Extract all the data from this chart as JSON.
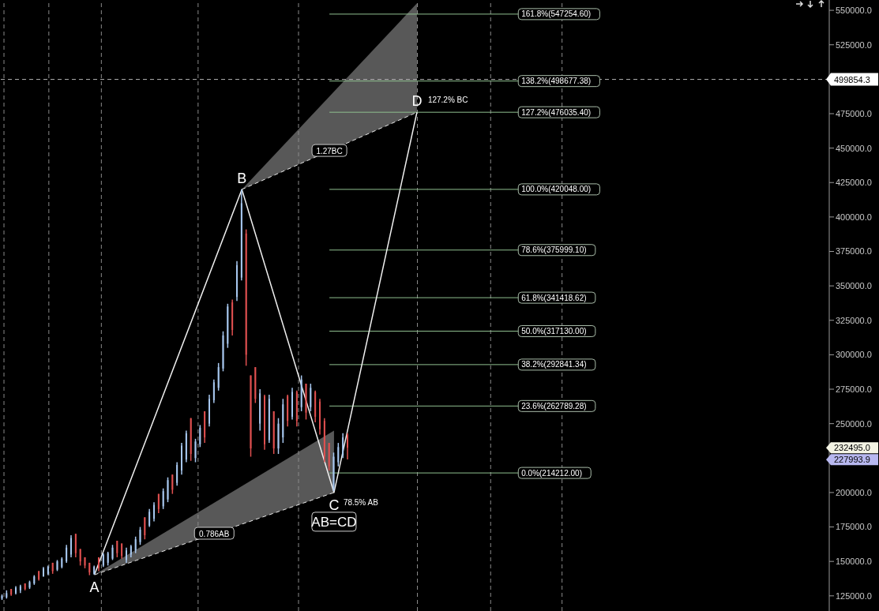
{
  "chart_data": {
    "type": "candlestick",
    "categories": [
      null,
      null,
      null,
      null,
      null,
      null,
      null,
      null,
      null,
      null,
      null,
      null,
      null,
      null,
      null,
      null,
      null,
      null,
      null,
      null,
      null,
      null,
      null,
      null,
      null,
      null,
      null,
      null,
      null,
      null,
      null,
      null,
      null,
      null,
      null,
      null,
      null,
      null,
      null,
      null,
      null,
      null,
      null,
      null,
      null,
      null,
      null,
      null,
      null,
      null,
      null,
      null,
      null,
      null,
      null,
      null,
      null,
      null,
      null,
      null,
      null,
      null,
      null,
      null,
      null,
      null,
      null,
      null,
      null,
      null,
      null,
      null,
      null,
      null,
      null,
      null,
      null,
      null,
      null,
      null,
      null,
      null,
      null,
      null,
      null,
      null,
      null,
      null,
      null,
      null,
      null,
      null,
      null,
      null,
      null,
      null,
      null,
      null,
      null,
      null,
      null,
      null,
      null,
      null,
      null,
      null,
      null,
      null,
      null,
      null,
      null,
      null,
      null,
      null,
      null,
      null,
      null,
      null,
      null,
      null,
      null,
      null,
      null,
      null,
      null,
      null,
      null,
      null,
      null,
      null,
      null,
      null,
      null,
      null,
      null,
      null,
      null,
      null,
      null,
      null,
      null,
      null,
      null,
      null,
      null,
      null,
      null,
      null,
      null,
      null,
      null,
      null,
      null,
      null,
      null,
      null,
      null,
      null,
      null,
      null,
      null,
      null,
      null,
      null,
      null,
      null,
      null,
      null,
      null,
      null,
      null,
      null,
      null,
      null,
      null,
      null,
      null,
      null,
      null,
      null
    ],
    "ohlc": [
      [
        123000,
        126000,
        122000,
        125000
      ],
      [
        124000,
        129000,
        123000,
        127000
      ],
      [
        130000,
        130000,
        125000,
        126000
      ],
      [
        127000,
        132000,
        126000,
        131000
      ],
      [
        129000,
        133000,
        127000,
        132000
      ],
      [
        134000,
        134000,
        129000,
        130000
      ],
      [
        131000,
        136000,
        130000,
        135000
      ],
      [
        134000,
        140000,
        133000,
        139000
      ],
      [
        143000,
        143000,
        136000,
        137000
      ],
      [
        139000,
        146000,
        139000,
        145000
      ],
      [
        141000,
        147000,
        140000,
        146000
      ],
      [
        149000,
        149000,
        141000,
        143000
      ],
      [
        144000,
        151000,
        143000,
        150000
      ],
      [
        146000,
        153000,
        145000,
        152000
      ],
      [
        150000,
        162000,
        149000,
        160000
      ],
      [
        155000,
        169000,
        153000,
        167000
      ],
      [
        170000,
        170000,
        153000,
        156000
      ],
      [
        159000,
        159000,
        147000,
        150000
      ],
      [
        153000,
        153000,
        145000,
        147000
      ],
      [
        149000,
        149000,
        140000,
        142000
      ],
      [
        141000,
        147000,
        140300,
        146000
      ],
      [
        153000,
        153000,
        143000,
        145000
      ],
      [
        147000,
        156000,
        146000,
        155000
      ],
      [
        149000,
        157000,
        147000,
        156000
      ],
      [
        152000,
        162000,
        151000,
        160000
      ],
      [
        165000,
        165000,
        153000,
        156000
      ],
      [
        163000,
        163000,
        152000,
        154000
      ],
      [
        151000,
        160000,
        149000,
        158000
      ],
      [
        155000,
        162000,
        153000,
        161000
      ],
      [
        158000,
        168000,
        156000,
        166000
      ],
      [
        164000,
        175000,
        162000,
        173000
      ],
      [
        182000,
        182000,
        166000,
        169000
      ],
      [
        176000,
        188000,
        175000,
        186000
      ],
      [
        181000,
        193000,
        179000,
        191000
      ],
      [
        199000,
        199000,
        185000,
        188000
      ],
      [
        190000,
        203000,
        188000,
        201000
      ],
      [
        195000,
        211000,
        193000,
        209000
      ],
      [
        213000,
        213000,
        199000,
        202000
      ],
      [
        207000,
        222000,
        205000,
        220000
      ],
      [
        216000,
        236000,
        213000,
        234000
      ],
      [
        224000,
        245000,
        222000,
        243000
      ],
      [
        254000,
        254000,
        223000,
        228000
      ],
      [
        225000,
        239000,
        222000,
        237000
      ],
      [
        235000,
        249000,
        233000,
        247000
      ],
      [
        259000,
        259000,
        236000,
        240000
      ],
      [
        250000,
        271000,
        248000,
        268000
      ],
      [
        267000,
        282000,
        265000,
        280000
      ],
      [
        276000,
        294000,
        274000,
        291000
      ],
      [
        290000,
        317000,
        288000,
        314000
      ],
      [
        308000,
        337000,
        305000,
        335000
      ],
      [
        338000,
        340000,
        314000,
        318000
      ],
      [
        342000,
        368000,
        339000,
        365000
      ],
      [
        356000,
        420000,
        354000,
        410000
      ],
      [
        388000,
        391000,
        292000,
        300000
      ],
      [
        285000,
        285000,
        226000,
        232000
      ],
      [
        291000,
        291000,
        265000,
        268000
      ],
      [
        250000,
        275000,
        245000,
        272000
      ],
      [
        270000,
        271000,
        231000,
        235000
      ],
      [
        238000,
        271000,
        236000,
        268000
      ],
      [
        259000,
        259000,
        228000,
        232000
      ],
      [
        232000,
        254000,
        228000,
        250000
      ],
      [
        240000,
        268000,
        236000,
        264000
      ],
      [
        270000,
        271000,
        248000,
        252000
      ],
      [
        255000,
        276000,
        253000,
        273000
      ],
      [
        273000,
        274000,
        248000,
        252000
      ],
      [
        262000,
        285000,
        259000,
        282000
      ],
      [
        279000,
        279000,
        253000,
        258000
      ],
      [
        262000,
        279000,
        259000,
        276000
      ],
      [
        273000,
        274000,
        251000,
        255000
      ],
      [
        266000,
        268000,
        242000,
        246000
      ],
      [
        252000,
        254000,
        222000,
        226000
      ],
      [
        236000,
        236000,
        216000,
        219000
      ],
      [
        203000,
        229000,
        201000,
        226000
      ],
      [
        222000,
        236000,
        219000,
        233000
      ],
      [
        227000,
        243000,
        225000,
        240000
      ],
      [
        242000,
        243000,
        224000,
        232495
      ],
      null,
      null,
      null,
      null,
      null,
      null,
      null,
      null,
      null,
      null,
      null,
      null,
      null,
      null,
      null,
      null,
      null,
      null,
      null,
      null,
      null,
      null,
      null,
      null,
      null,
      null,
      null,
      null,
      null,
      null,
      null,
      null,
      null,
      null,
      null,
      null,
      null,
      null,
      null,
      null,
      null,
      null,
      null,
      null,
      null,
      null,
      null,
      null,
      null,
      null,
      null,
      null,
      null,
      null,
      null,
      null,
      null,
      null,
      null,
      null,
      null,
      null,
      null,
      null,
      null,
      null,
      null,
      null,
      null,
      null,
      null,
      null,
      null,
      null,
      null,
      null,
      null,
      null,
      null,
      null,
      null,
      null,
      null,
      null,
      null,
      null,
      null,
      null,
      null,
      null,
      null,
      null,
      null,
      null,
      null,
      null,
      null,
      null,
      null,
      null,
      null,
      null,
      null,
      null
    ],
    "colors": [
      "#a8c8f0",
      "#a8c8f0",
      "#e05050",
      "#a8c8f0",
      "#a8c8f0",
      "#e05050",
      "#a8c8f0",
      "#a8c8f0",
      "#e05050",
      "#a8c8f0",
      "#a8c8f0",
      "#e05050",
      "#a8c8f0",
      "#a8c8f0",
      "#a8c8f0",
      "#a8c8f0",
      "#e05050",
      "#e05050",
      "#e05050",
      "#e05050",
      "#a8c8f0",
      "#e05050",
      "#a8c8f0",
      "#a8c8f0",
      "#a8c8f0",
      "#e05050",
      "#e05050",
      "#a8c8f0",
      "#a8c8f0",
      "#a8c8f0",
      "#a8c8f0",
      "#e05050",
      "#a8c8f0",
      "#a8c8f0",
      "#e05050",
      "#a8c8f0",
      "#a8c8f0",
      "#e05050",
      "#a8c8f0",
      "#a8c8f0",
      "#a8c8f0",
      "#e05050",
      "#a8c8f0",
      "#a8c8f0",
      "#e05050",
      "#a8c8f0",
      "#a8c8f0",
      "#a8c8f0",
      "#a8c8f0",
      "#a8c8f0",
      "#e05050",
      "#a8c8f0",
      "#a8c8f0",
      "#e05050",
      "#e05050",
      "#e05050",
      "#a8c8f0",
      "#e05050",
      "#a8c8f0",
      "#e05050",
      "#a8c8f0",
      "#a8c8f0",
      "#e05050",
      "#a8c8f0",
      "#e05050",
      "#a8c8f0",
      "#e05050",
      "#a8c8f0",
      "#e05050",
      "#e05050",
      "#e05050",
      "#e05050",
      "#a8c8f0",
      "#a8c8f0",
      "#a8c8f0",
      "#e05050",
      null,
      null,
      null,
      null,
      null,
      null,
      null,
      null,
      null,
      null,
      null,
      null,
      null,
      null,
      null,
      null,
      null,
      null,
      null,
      null,
      null,
      null,
      null,
      null,
      null,
      null,
      null,
      null,
      null,
      null,
      null,
      null,
      null,
      null,
      null,
      null,
      null,
      null,
      null,
      null,
      null,
      null,
      null,
      null,
      null,
      null,
      null,
      null,
      null,
      null,
      null,
      null,
      null,
      null,
      null,
      null,
      null,
      null,
      null,
      null,
      null,
      null,
      null,
      null,
      null,
      null,
      null,
      null,
      null,
      null,
      null,
      null,
      null,
      null,
      null,
      null,
      null,
      null,
      null,
      null,
      null,
      null,
      null,
      null,
      null,
      null,
      null,
      null,
      null,
      null,
      null,
      null,
      null,
      null,
      null,
      null,
      null,
      null,
      null,
      null,
      null,
      null,
      null,
      null
    ],
    "series": [
      {
        "type": "line",
        "color": "#f0f0f0",
        "line_style": "solid",
        "values": [
          null,
          null,
          null,
          null,
          null,
          null,
          null,
          null,
          null,
          null,
          null,
          null,
          null,
          null,
          null,
          null,
          null,
          null,
          null,
          null,
          140300,
          null,
          null,
          null,
          null,
          null,
          null,
          null,
          null,
          null,
          null,
          null,
          null,
          null,
          null,
          null,
          null,
          null,
          null,
          null,
          null,
          null,
          null,
          null,
          null,
          null,
          null,
          null,
          null,
          null,
          null,
          null,
          420000,
          null,
          null,
          null,
          null,
          null,
          null,
          null,
          null,
          null,
          null,
          null,
          null,
          null,
          null,
          null,
          null,
          null,
          null,
          null,
          200000,
          null,
          null,
          null,
          null,
          null,
          null,
          null,
          null,
          null,
          null,
          null,
          null,
          null,
          null,
          null,
          null,
          null,
          476000,
          null,
          null,
          null,
          null,
          null,
          null,
          null,
          null,
          null,
          null,
          null,
          null,
          null,
          null,
          null,
          null,
          null,
          null,
          null,
          null,
          null,
          null,
          null,
          null,
          null,
          null,
          null,
          null,
          null,
          null,
          null,
          null,
          null,
          null,
          null,
          null,
          null,
          null,
          null,
          null,
          null,
          null,
          null,
          null,
          null,
          null,
          null,
          null,
          null,
          null,
          null,
          null,
          null,
          null,
          null,
          null,
          null,
          null,
          null,
          null,
          null,
          null,
          null,
          null,
          null,
          null,
          null,
          null,
          null,
          null,
          null,
          null,
          null,
          null,
          null,
          null,
          null,
          null,
          null,
          null,
          null,
          null,
          null,
          null,
          null,
          null,
          null,
          null,
          null
        ],
        "value_labels": [
          null,
          null,
          null,
          null,
          null,
          null,
          null,
          null,
          null,
          null,
          null,
          null,
          null,
          null,
          null,
          null,
          null,
          null,
          null,
          null,
          "A",
          null,
          null,
          null,
          null,
          null,
          null,
          null,
          null,
          null,
          null,
          null,
          null,
          null,
          null,
          null,
          null,
          null,
          null,
          null,
          null,
          null,
          null,
          null,
          null,
          null,
          null,
          null,
          null,
          null,
          null,
          null,
          "B",
          null,
          null,
          null,
          null,
          null,
          null,
          null,
          null,
          null,
          null,
          null,
          null,
          null,
          null,
          null,
          null,
          null,
          null,
          null,
          "C",
          null,
          null,
          null,
          null,
          null,
          null,
          null,
          null,
          null,
          null,
          null,
          null,
          null,
          null,
          null,
          null,
          null,
          "D",
          null,
          null,
          null,
          null,
          null,
          null,
          null,
          null,
          null,
          null,
          null,
          null,
          null,
          null,
          null,
          null,
          null,
          null,
          null,
          null,
          null,
          null,
          null,
          null,
          null,
          null,
          null,
          null,
          null,
          null,
          null,
          null,
          null,
          null,
          null,
          null,
          null,
          null,
          null,
          null,
          null,
          null,
          null,
          null,
          null,
          null,
          null,
          null,
          null,
          null,
          null,
          null,
          null,
          null,
          null,
          null,
          null,
          null,
          null,
          null,
          null,
          null,
          null,
          null,
          null,
          null,
          null,
          null,
          null,
          null,
          null,
          null,
          null,
          null,
          null,
          null,
          null,
          null,
          null,
          null,
          null,
          null,
          null,
          null,
          null,
          null,
          null,
          null,
          null
        ]
      },
      {
        "type": "line",
        "name": "0.786AB",
        "color": "#e8e8e8",
        "line_style": "dashed",
        "values": [
          null,
          null,
          null,
          null,
          null,
          null,
          null,
          null,
          null,
          null,
          null,
          null,
          null,
          null,
          null,
          null,
          null,
          null,
          null,
          null,
          140300,
          null,
          null,
          null,
          null,
          null,
          null,
          null,
          null,
          null,
          null,
          null,
          null,
          null,
          null,
          null,
          null,
          null,
          null,
          null,
          null,
          null,
          null,
          null,
          null,
          null,
          null,
          null,
          null,
          null,
          null,
          null,
          null,
          null,
          null,
          null,
          null,
          null,
          null,
          null,
          null,
          null,
          null,
          null,
          null,
          null,
          null,
          null,
          null,
          null,
          null,
          null,
          200000,
          null,
          null,
          null,
          null,
          null,
          null,
          null,
          null,
          null,
          null,
          null,
          null,
          null,
          null,
          null,
          null,
          null,
          null,
          null,
          null,
          null,
          null,
          null,
          null,
          null,
          null,
          null,
          null,
          null,
          null,
          null,
          null,
          null,
          null,
          null,
          null,
          null,
          null,
          null,
          null,
          null,
          null,
          null,
          null,
          null,
          null,
          null,
          null,
          null,
          null,
          null,
          null,
          null,
          null,
          null,
          null,
          null,
          null,
          null,
          null,
          null,
          null,
          null,
          null,
          null,
          null,
          null,
          null,
          null,
          null,
          null,
          null,
          null,
          null,
          null,
          null,
          null,
          null,
          null,
          null,
          null,
          null,
          null,
          null,
          null,
          null,
          null,
          null,
          null,
          null,
          null,
          null,
          null,
          null,
          null,
          null,
          null,
          null,
          null,
          null,
          null,
          null,
          null,
          null,
          null,
          null,
          null
        ],
        "lower": [
          null,
          null,
          null,
          null,
          null,
          null,
          null,
          null,
          null,
          null,
          null,
          null,
          null,
          null,
          null,
          null,
          null,
          null,
          null,
          null,
          140300,
          null,
          null,
          null,
          null,
          null,
          null,
          null,
          null,
          null,
          null,
          null,
          null,
          null,
          null,
          null,
          null,
          null,
          null,
          null,
          null,
          null,
          null,
          null,
          null,
          null,
          null,
          null,
          null,
          null,
          null,
          null,
          null,
          null,
          null,
          null,
          null,
          null,
          null,
          null,
          null,
          null,
          null,
          null,
          null,
          null,
          null,
          null,
          null,
          null,
          null,
          null,
          200000,
          null,
          null,
          null,
          null,
          null,
          null,
          null,
          null,
          null,
          null,
          null,
          null,
          null,
          null,
          null,
          null,
          null,
          null,
          null,
          null,
          null,
          null,
          null,
          null,
          null,
          null,
          null,
          null,
          null,
          null,
          null,
          null,
          null,
          null,
          null,
          null,
          null,
          null,
          null,
          null,
          null,
          null,
          null,
          null,
          null,
          null,
          null,
          null,
          null,
          null,
          null,
          null,
          null,
          null,
          null,
          null,
          null,
          null,
          null,
          null,
          null,
          null,
          null,
          null,
          null,
          null,
          null,
          null,
          null,
          null,
          null,
          null,
          null,
          null,
          null,
          null,
          null,
          null,
          null,
          null,
          null,
          null,
          null,
          null,
          null,
          null,
          null,
          null,
          null,
          null,
          null,
          null,
          null,
          null,
          null,
          null,
          null,
          null,
          null,
          null,
          null,
          null,
          null,
          null,
          null,
          null,
          null
        ],
        "upper": [
          null,
          null,
          null,
          null,
          null,
          null,
          null,
          null,
          null,
          null,
          null,
          null,
          null,
          null,
          null,
          null,
          null,
          null,
          null,
          null,
          140300,
          null,
          null,
          null,
          null,
          null,
          null,
          null,
          null,
          null,
          null,
          null,
          null,
          null,
          null,
          null,
          null,
          null,
          null,
          null,
          null,
          null,
          null,
          null,
          null,
          null,
          null,
          null,
          null,
          null,
          null,
          null,
          null,
          null,
          null,
          null,
          null,
          null,
          null,
          null,
          null,
          null,
          null,
          null,
          null,
          null,
          null,
          null,
          null,
          null,
          null,
          null,
          245000,
          null,
          null,
          null,
          null,
          null,
          null,
          null,
          null,
          null,
          null,
          null,
          null,
          null,
          null,
          null,
          null,
          null,
          null,
          null,
          null,
          null,
          null,
          null,
          null,
          null,
          null,
          null,
          null,
          null,
          null,
          null,
          null,
          null,
          null,
          null,
          null,
          null,
          null,
          null,
          null,
          null,
          null,
          null,
          null,
          null,
          null,
          null,
          null,
          null,
          null,
          null,
          null,
          null,
          null,
          null,
          null,
          null,
          null,
          null,
          null,
          null,
          null,
          null,
          null,
          null,
          null,
          null,
          null,
          null,
          null,
          null,
          null,
          null,
          null,
          null,
          null,
          null,
          null,
          null,
          null,
          null,
          null,
          null,
          null,
          null,
          null,
          null,
          null,
          null,
          null,
          null,
          null,
          null,
          null,
          null,
          null,
          null,
          null,
          null,
          null,
          null,
          null,
          null,
          null,
          null,
          null,
          null
        ]
      },
      {
        "type": "line",
        "name": "1.27BC",
        "color": "#e8e8e8",
        "line_style": "dashed",
        "values": [
          null,
          null,
          null,
          null,
          null,
          null,
          null,
          null,
          null,
          null,
          null,
          null,
          null,
          null,
          null,
          null,
          null,
          null,
          null,
          null,
          null,
          null,
          null,
          null,
          null,
          null,
          null,
          null,
          null,
          null,
          null,
          null,
          null,
          null,
          null,
          null,
          null,
          null,
          null,
          null,
          null,
          null,
          null,
          null,
          null,
          null,
          null,
          null,
          null,
          null,
          null,
          null,
          420000,
          null,
          null,
          null,
          null,
          null,
          null,
          null,
          null,
          null,
          null,
          null,
          null,
          null,
          null,
          null,
          null,
          null,
          null,
          null,
          null,
          null,
          null,
          null,
          null,
          null,
          null,
          null,
          null,
          null,
          null,
          null,
          null,
          null,
          null,
          null,
          null,
          null,
          476000,
          null,
          null,
          null,
          null,
          null,
          null,
          null,
          null,
          null,
          null,
          null,
          null,
          null,
          null,
          null,
          null,
          null,
          null,
          null,
          null,
          null,
          null,
          null,
          null,
          null,
          null,
          null,
          null,
          null,
          null,
          null,
          null,
          null,
          null,
          null,
          null,
          null,
          null,
          null,
          null,
          null,
          null,
          null,
          null,
          null,
          null,
          null,
          null,
          null,
          null,
          null,
          null,
          null,
          null,
          null,
          null,
          null,
          null,
          null,
          null,
          null,
          null,
          null,
          null,
          null,
          null,
          null,
          null,
          null,
          null,
          null,
          null,
          null,
          null,
          null,
          null,
          null,
          null,
          null,
          null,
          null,
          null,
          null,
          null,
          null,
          null,
          null,
          null,
          null
        ],
        "lower": [
          null,
          null,
          null,
          null,
          null,
          null,
          null,
          null,
          null,
          null,
          null,
          null,
          null,
          null,
          null,
          null,
          null,
          null,
          null,
          null,
          null,
          null,
          null,
          null,
          null,
          null,
          null,
          null,
          null,
          null,
          null,
          null,
          null,
          null,
          null,
          null,
          null,
          null,
          null,
          null,
          null,
          null,
          null,
          null,
          null,
          null,
          null,
          null,
          null,
          null,
          null,
          null,
          420000,
          null,
          null,
          null,
          null,
          null,
          null,
          null,
          null,
          null,
          null,
          null,
          null,
          null,
          null,
          null,
          null,
          null,
          null,
          null,
          null,
          null,
          null,
          null,
          null,
          null,
          null,
          null,
          null,
          null,
          null,
          null,
          null,
          null,
          null,
          null,
          null,
          null,
          476000,
          null,
          null,
          null,
          null,
          null,
          null,
          null,
          null,
          null,
          null,
          null,
          null,
          null,
          null,
          null,
          null,
          null,
          null,
          null,
          null,
          null,
          null,
          null,
          null,
          null,
          null,
          null,
          null,
          null,
          null,
          null,
          null,
          null,
          null,
          null,
          null,
          null,
          null,
          null,
          null,
          null,
          null,
          null,
          null,
          null,
          null,
          null,
          null,
          null,
          null,
          null,
          null,
          null,
          null,
          null,
          null,
          null,
          null,
          null,
          null,
          null,
          null,
          null,
          null,
          null,
          null,
          null,
          null,
          null,
          null,
          null,
          null,
          null,
          null,
          null,
          null,
          null,
          null,
          null,
          null,
          null,
          null,
          null,
          null,
          null,
          null,
          null,
          null,
          null
        ],
        "upper": [
          null,
          null,
          null,
          null,
          null,
          null,
          null,
          null,
          null,
          null,
          null,
          null,
          null,
          null,
          null,
          null,
          null,
          null,
          null,
          null,
          null,
          null,
          null,
          null,
          null,
          null,
          null,
          null,
          null,
          null,
          null,
          null,
          null,
          null,
          null,
          null,
          null,
          null,
          null,
          null,
          null,
          null,
          null,
          null,
          null,
          null,
          null,
          null,
          null,
          null,
          null,
          null,
          420000,
          null,
          null,
          null,
          null,
          null,
          null,
          null,
          null,
          null,
          null,
          null,
          null,
          null,
          null,
          null,
          null,
          null,
          null,
          null,
          null,
          null,
          null,
          null,
          null,
          null,
          null,
          null,
          null,
          null,
          null,
          null,
          null,
          null,
          null,
          null,
          null,
          null,
          555000,
          null,
          null,
          null,
          null,
          null,
          null,
          null,
          null,
          null,
          null,
          null,
          null,
          null,
          null,
          null,
          null,
          null,
          null,
          null,
          null,
          null,
          null,
          null,
          null,
          null,
          null,
          null,
          null,
          null,
          null,
          null,
          null,
          null,
          null,
          null,
          null,
          null,
          null,
          null,
          null,
          null,
          null,
          null,
          null,
          null,
          null,
          null,
          null,
          null,
          null,
          null,
          null,
          null,
          null,
          null,
          null,
          null,
          null,
          null,
          null,
          null,
          null,
          null,
          null,
          null,
          null,
          null,
          null,
          null,
          null,
          null,
          null,
          null,
          null,
          null,
          null,
          null,
          null,
          null,
          null,
          null,
          null,
          null,
          null,
          null,
          null,
          null,
          null,
          null
        ]
      }
    ],
    "ylim": [
      114000,
      557500
    ],
    "yticks": [
      {
        "value": 125000,
        "label": "125000.0"
      },
      {
        "value": 150000,
        "label": "150000.0"
      },
      {
        "value": 175000,
        "label": "175000.0"
      },
      {
        "value": 200000,
        "label": "200000.0"
      },
      {
        "value": 250000,
        "label": "250000.0"
      },
      {
        "value": 275000,
        "label": "275000.0"
      },
      {
        "value": 300000,
        "label": "300000.0"
      },
      {
        "value": 325000,
        "label": "325000.0"
      },
      {
        "value": 350000,
        "label": "350000.0"
      },
      {
        "value": 375000,
        "label": "375000.0"
      },
      {
        "value": 400000,
        "label": "400000.0"
      },
      {
        "value": 425000,
        "label": "425000.0"
      },
      {
        "value": 450000,
        "label": "450000.0"
      },
      {
        "value": 475000,
        "label": "475000.0"
      },
      {
        "value": 525000,
        "label": "525000.0"
      },
      {
        "value": 550000,
        "label": "550000.0"
      }
    ],
    "tick_labels": "y",
    "legend": false,
    "marker": "none",
    "ref_lines": [
      {
        "axis": "y",
        "value": 547254.6,
        "label": "161.8%(547254.60)",
        "color": "#8fbf8f",
        "line_style": "solid"
      },
      {
        "axis": "y",
        "value": 498677.38,
        "label": "138.2%(498677.38)",
        "color": "#8fbf8f",
        "line_style": "solid"
      },
      {
        "axis": "y",
        "value": 476035.4,
        "label": "127.2%(476035.40)",
        "color": "#8fbf8f",
        "line_style": "solid"
      },
      {
        "axis": "y",
        "value": 420048,
        "label": "100.0%(420048.00)",
        "color": "#8fbf8f",
        "line_style": "solid"
      },
      {
        "axis": "y",
        "value": 375999.1,
        "label": "78.6%(375999.10)",
        "color": "#8fbf8f",
        "line_style": "solid"
      },
      {
        "axis": "y",
        "value": 341418.62,
        "label": "61.8%(341418.62)",
        "color": "#8fbf8f",
        "line_style": "solid"
      },
      {
        "axis": "y",
        "value": 317130,
        "label": "50.0%(317130.00)",
        "color": "#8fbf8f",
        "line_style": "solid"
      },
      {
        "axis": "y",
        "value": 292841.34,
        "label": "38.2%(292841.34)",
        "color": "#8fbf8f",
        "line_style": "solid"
      },
      {
        "axis": "y",
        "value": 262789.28,
        "label": "23.6%(262789.28)",
        "color": "#8fbf8f",
        "line_style": "solid"
      },
      {
        "axis": "y",
        "value": 214212,
        "label": "0.0%(214212.00)",
        "color": "#8fbf8f",
        "line_style": "solid"
      },
      {
        "axis": "y",
        "value": 499854.3,
        "label": "499854.3",
        "color": "#b4b4b4",
        "line_style": "dashed"
      }
    ],
    "annotations": [
      "127.2% BC",
      "78.5% AB",
      "AB=CD",
      "232495.0",
      "227993.9"
    ]
  }
}
